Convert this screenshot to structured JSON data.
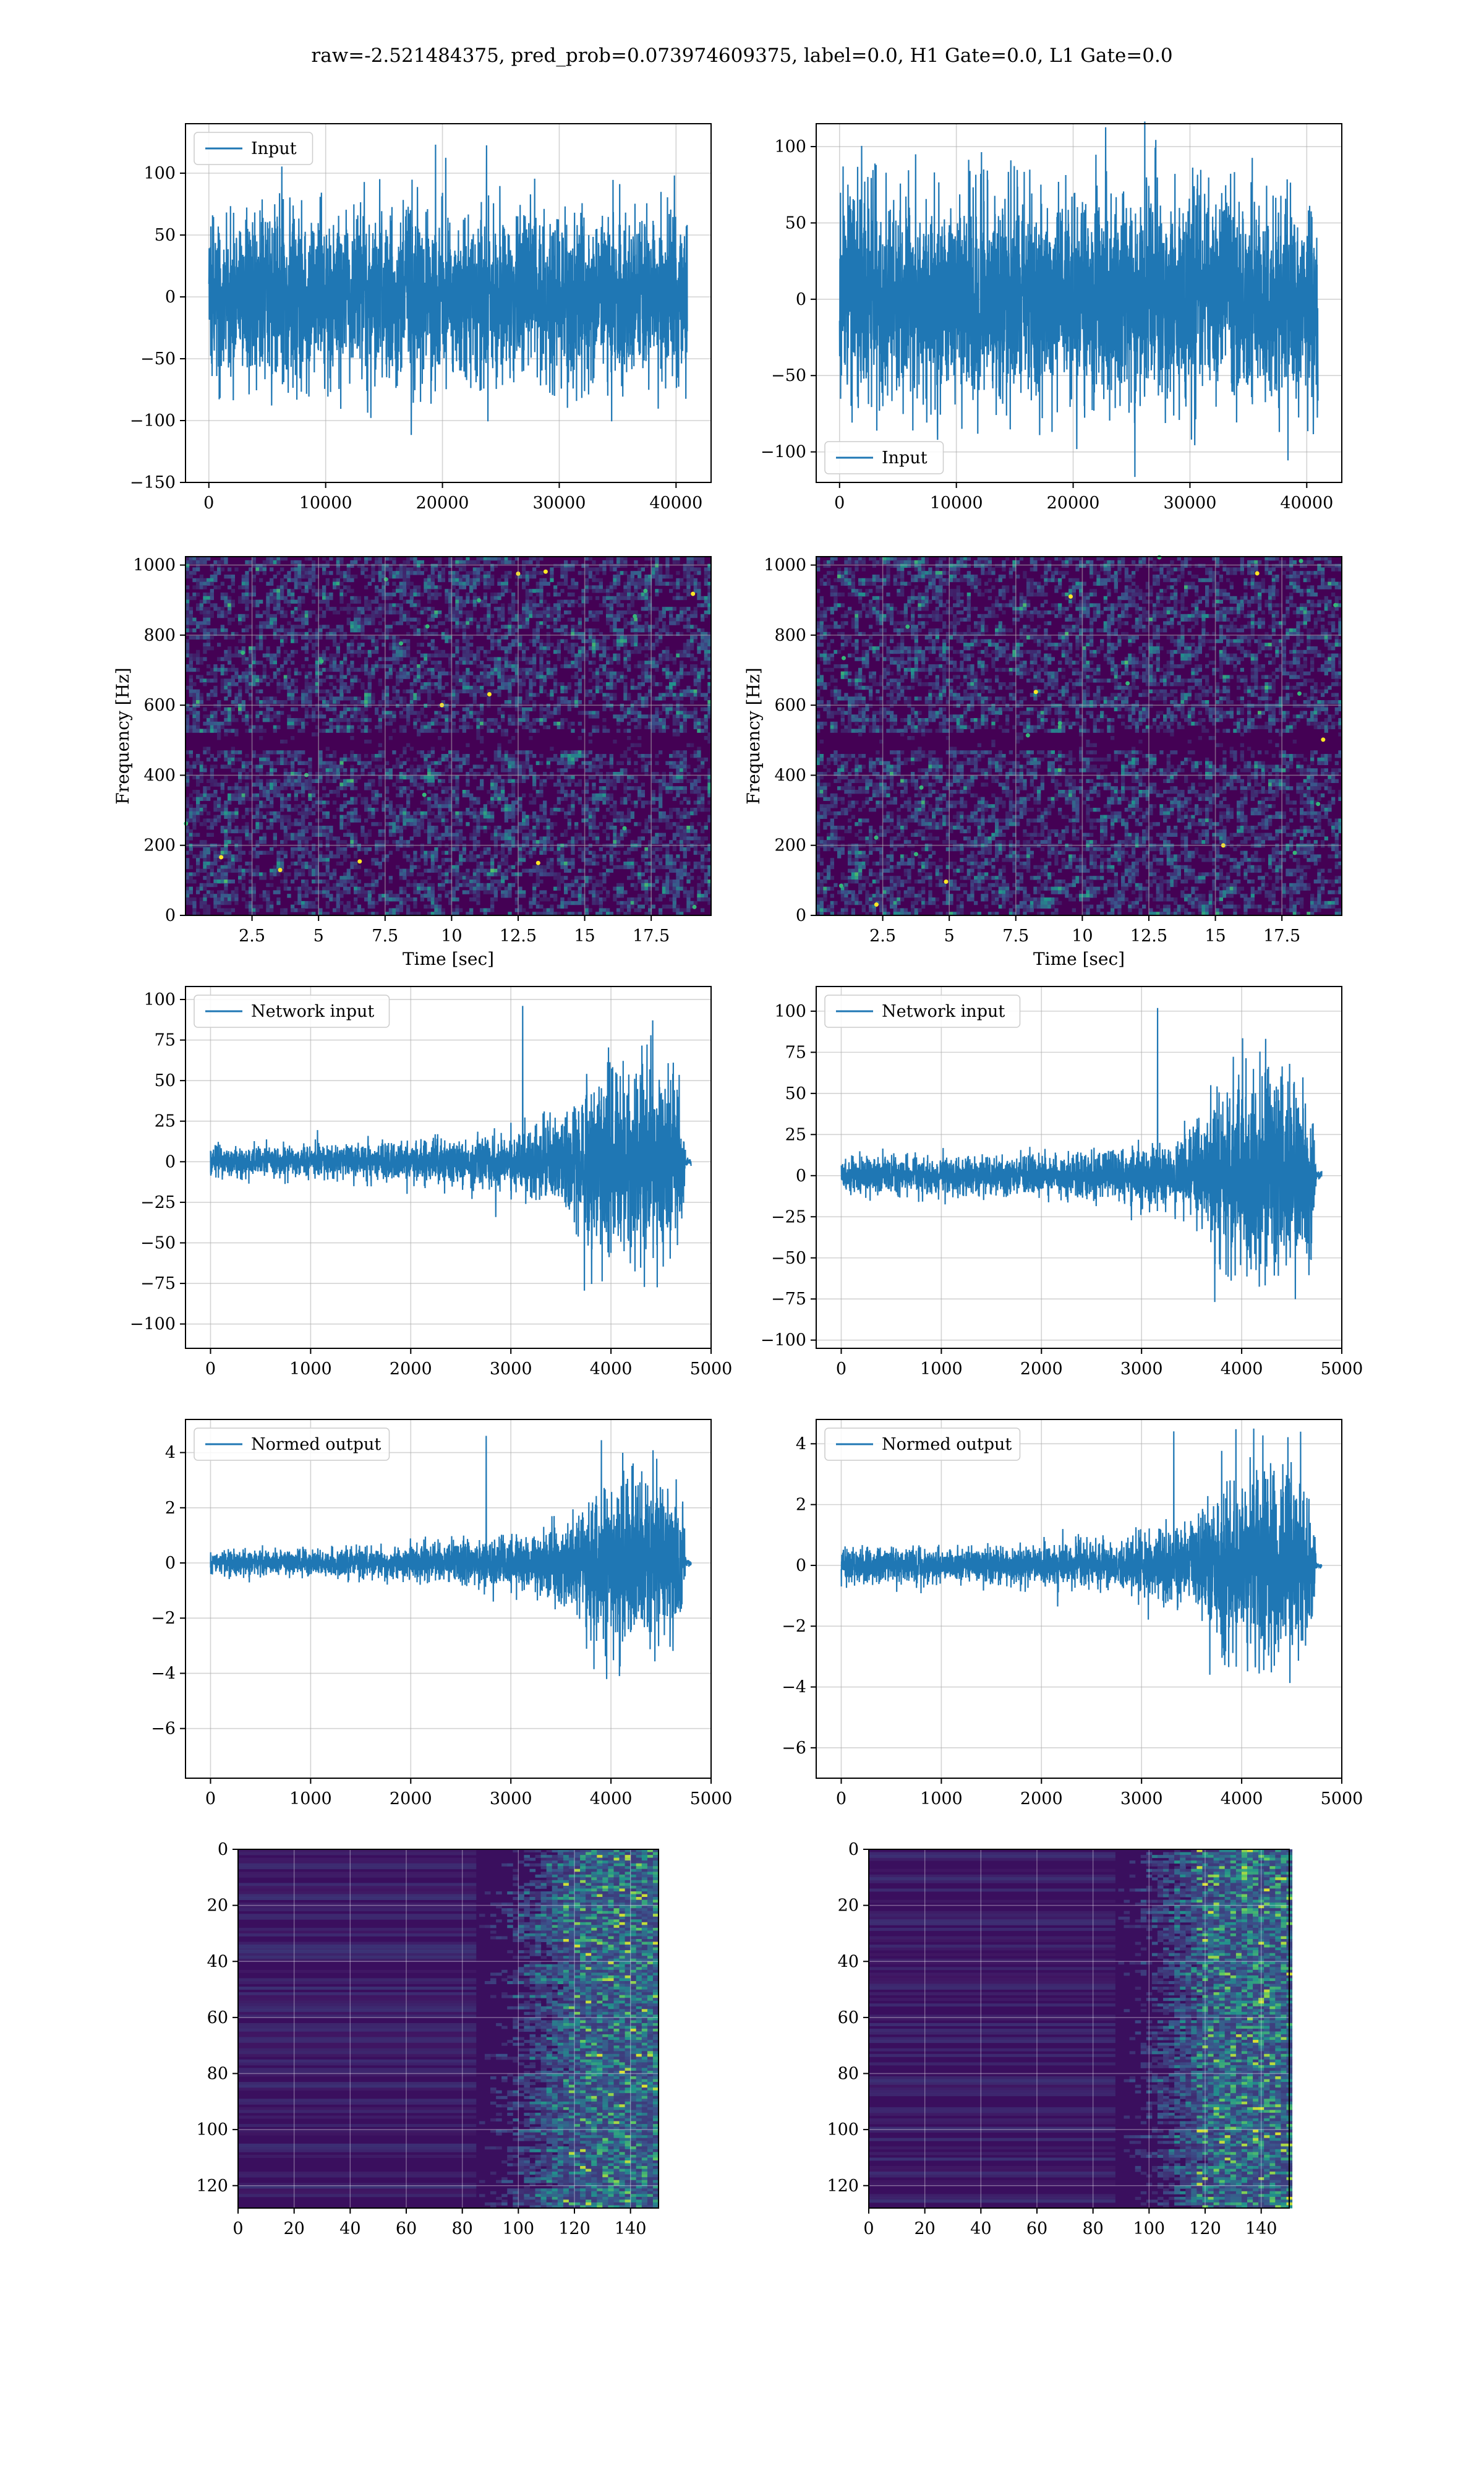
{
  "figure": {
    "suptitle": "raw=-2.521484375, pred_prob=0.073974609375, label=0.0, H1 Gate=0.0, L1 Gate=0.0",
    "colors": {
      "line": "#1f77b4",
      "grid": "#b0b0b0",
      "viridis_dark": "#440154",
      "viridis_mid": "#31688e",
      "viridis_green": "#35b779",
      "viridis_yellow": "#fde725"
    }
  },
  "chart_data": [
    {
      "id": "input-h1",
      "type": "line",
      "row": 0,
      "col": 0,
      "legend": "Input",
      "legend_loc": "upper-left",
      "xlim": [
        -2000,
        43000
      ],
      "ylim": [
        -150,
        140
      ],
      "xticks": [
        0,
        10000,
        20000,
        30000,
        40000
      ],
      "yticks": [
        -150,
        -100,
        -50,
        0,
        50,
        100
      ],
      "signal": {
        "n": 40960,
        "env": [
          [
            0,
            60
          ],
          [
            40960,
            60
          ]
        ],
        "peak": 125,
        "end_taper": false
      }
    },
    {
      "id": "input-l1",
      "type": "line",
      "row": 0,
      "col": 1,
      "legend": "Input",
      "legend_loc": "lower-left",
      "xlim": [
        -2000,
        43000
      ],
      "ylim": [
        -120,
        115
      ],
      "xticks": [
        0,
        10000,
        20000,
        30000,
        40000
      ],
      "yticks": [
        -100,
        -50,
        0,
        50,
        100
      ],
      "signal": {
        "n": 40960,
        "env": [
          [
            0,
            60
          ],
          [
            40960,
            60
          ]
        ],
        "peak": 115,
        "end_taper": false
      }
    },
    {
      "id": "spectrogram-h1",
      "type": "heatmap",
      "row": 1,
      "col": 0,
      "xlabel": "Time [sec]",
      "ylabel": "Frequency [Hz]",
      "xlim": [
        0,
        19.75
      ],
      "ylim": [
        0,
        1024
      ],
      "xticks": [
        2.5,
        5.0,
        7.5,
        10.0,
        12.5,
        15.0,
        17.5
      ],
      "yticks": [
        0,
        200,
        400,
        600,
        800,
        1000
      ],
      "colormap": "viridis",
      "dark_band_hz": [
        470,
        520
      ]
    },
    {
      "id": "spectrogram-l1",
      "type": "heatmap",
      "row": 1,
      "col": 1,
      "xlabel": "Time [sec]",
      "ylabel": "Frequency [Hz]",
      "xlim": [
        0,
        19.75
      ],
      "ylim": [
        0,
        1024
      ],
      "xticks": [
        2.5,
        5.0,
        7.5,
        10.0,
        12.5,
        15.0,
        17.5
      ],
      "yticks": [
        0,
        200,
        400,
        600,
        800,
        1000
      ],
      "colormap": "viridis",
      "dark_band_hz": [
        470,
        520
      ]
    },
    {
      "id": "network-input-h1",
      "type": "line",
      "row": 2,
      "col": 0,
      "legend": "Network input",
      "legend_loc": "upper-left",
      "xlim": [
        -250,
        5000
      ],
      "ylim": [
        -115,
        108
      ],
      "xticks": [
        0,
        1000,
        2000,
        3000,
        4000,
        5000
      ],
      "yticks": [
        -100,
        -75,
        -50,
        -25,
        0,
        25,
        50,
        75,
        100
      ],
      "signal": {
        "n": 4800,
        "env": [
          [
            0,
            8
          ],
          [
            1500,
            9
          ],
          [
            2700,
            13
          ],
          [
            3500,
            22
          ],
          [
            3800,
            45
          ],
          [
            4300,
            55
          ],
          [
            4700,
            48
          ],
          [
            4750,
            2
          ],
          [
            4800,
            2
          ]
        ],
        "peak": 98,
        "end_taper": true
      }
    },
    {
      "id": "network-input-l1",
      "type": "line",
      "row": 2,
      "col": 1,
      "legend": "Network input",
      "legend_loc": "upper-left",
      "xlim": [
        -250,
        5000
      ],
      "ylim": [
        -105,
        115
      ],
      "xticks": [
        0,
        1000,
        2000,
        3000,
        4000,
        5000
      ],
      "yticks": [
        -100,
        -75,
        -50,
        -25,
        0,
        25,
        50,
        75,
        100
      ],
      "signal": {
        "n": 4800,
        "env": [
          [
            0,
            9
          ],
          [
            1500,
            10
          ],
          [
            2700,
            13
          ],
          [
            3500,
            22
          ],
          [
            3800,
            48
          ],
          [
            4300,
            55
          ],
          [
            4700,
            45
          ],
          [
            4750,
            2
          ],
          [
            4800,
            2
          ]
        ],
        "peak": 104,
        "end_taper": true
      }
    },
    {
      "id": "normed-output-h1",
      "type": "line",
      "row": 3,
      "col": 0,
      "legend": "Normed output",
      "legend_loc": "upper-left",
      "xlim": [
        -250,
        5000
      ],
      "ylim": [
        -7.8,
        5.2
      ],
      "xticks": [
        0,
        1000,
        2000,
        3000,
        4000,
        5000
      ],
      "yticks": [
        -6,
        -4,
        -2,
        0,
        2,
        4
      ],
      "signal": {
        "n": 4800,
        "env": [
          [
            0,
            0.4
          ],
          [
            1500,
            0.45
          ],
          [
            2700,
            0.7
          ],
          [
            3500,
            1.2
          ],
          [
            3800,
            2.4
          ],
          [
            4300,
            2.7
          ],
          [
            4700,
            2.4
          ],
          [
            4750,
            0.1
          ],
          [
            4800,
            0.1
          ]
        ],
        "peak": 4.7,
        "end_taper": true
      }
    },
    {
      "id": "normed-output-l1",
      "type": "line",
      "row": 3,
      "col": 1,
      "legend": "Normed output",
      "legend_loc": "upper-left",
      "xlim": [
        -250,
        5000
      ],
      "ylim": [
        -7.0,
        4.8
      ],
      "xticks": [
        0,
        1000,
        2000,
        3000,
        4000,
        5000
      ],
      "yticks": [
        -6,
        -4,
        -2,
        0,
        2,
        4
      ],
      "signal": {
        "n": 4800,
        "env": [
          [
            0,
            0.5
          ],
          [
            1500,
            0.5
          ],
          [
            2700,
            0.7
          ],
          [
            3500,
            1.2
          ],
          [
            3800,
            2.5
          ],
          [
            4300,
            2.8
          ],
          [
            4700,
            2.3
          ],
          [
            4750,
            0.1
          ],
          [
            4800,
            0.1
          ]
        ],
        "peak": 4.5,
        "end_taper": true
      }
    },
    {
      "id": "feature-map-h1",
      "type": "heatmap",
      "row": 4,
      "col": 0,
      "xlim": [
        0,
        150
      ],
      "ylim": [
        128,
        0
      ],
      "xticks": [
        0,
        20,
        40,
        60,
        80,
        100,
        120,
        140
      ],
      "yticks": [
        0,
        20,
        40,
        60,
        80,
        100,
        120
      ],
      "colormap": "viridis",
      "rows": 128,
      "cols": 150,
      "activity_onset_col": 85
    },
    {
      "id": "feature-map-l1",
      "type": "heatmap",
      "row": 4,
      "col": 1,
      "xlim": [
        0,
        150
      ],
      "ylim": [
        128,
        0
      ],
      "xticks": [
        0,
        20,
        40,
        60,
        80,
        100,
        120,
        140
      ],
      "yticks": [
        0,
        20,
        40,
        60,
        80,
        100,
        120
      ],
      "colormap": "viridis",
      "rows": 128,
      "cols": 150,
      "activity_onset_col": 88
    }
  ]
}
